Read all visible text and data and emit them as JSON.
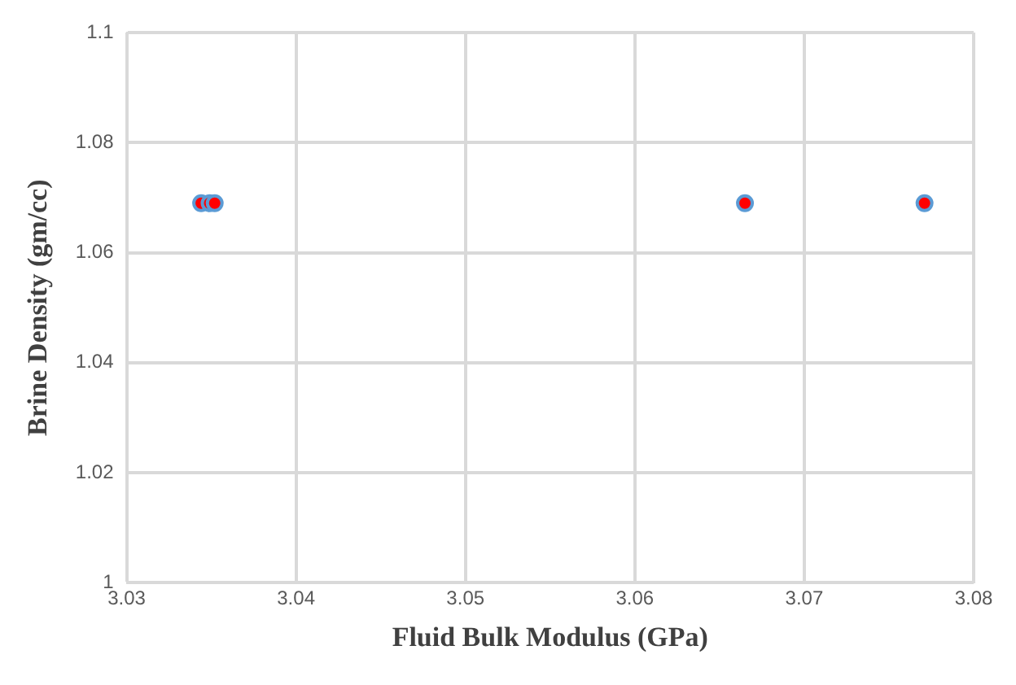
{
  "chart_data": {
    "type": "scatter",
    "xlabel": "Fluid Bulk Modulus (GPa)",
    "ylabel": "Brine Density (gm/cc)",
    "x": [
      3.0344,
      3.0349,
      3.0352,
      3.0665,
      3.0771
    ],
    "series": [
      {
        "color": "#ff0000",
        "values": [
          1.069,
          1.069,
          1.069,
          1.069,
          1.069
        ]
      }
    ],
    "xlim": [
      3.03,
      3.08
    ],
    "xticks": [
      3.03,
      3.04,
      3.05,
      3.06,
      3.07,
      3.08
    ],
    "ylim": [
      1,
      1.1
    ],
    "yticks": [
      1,
      1.02,
      1.04,
      1.06,
      1.08,
      1.1
    ],
    "grid": true,
    "legend": false,
    "marker": "circle"
  }
}
